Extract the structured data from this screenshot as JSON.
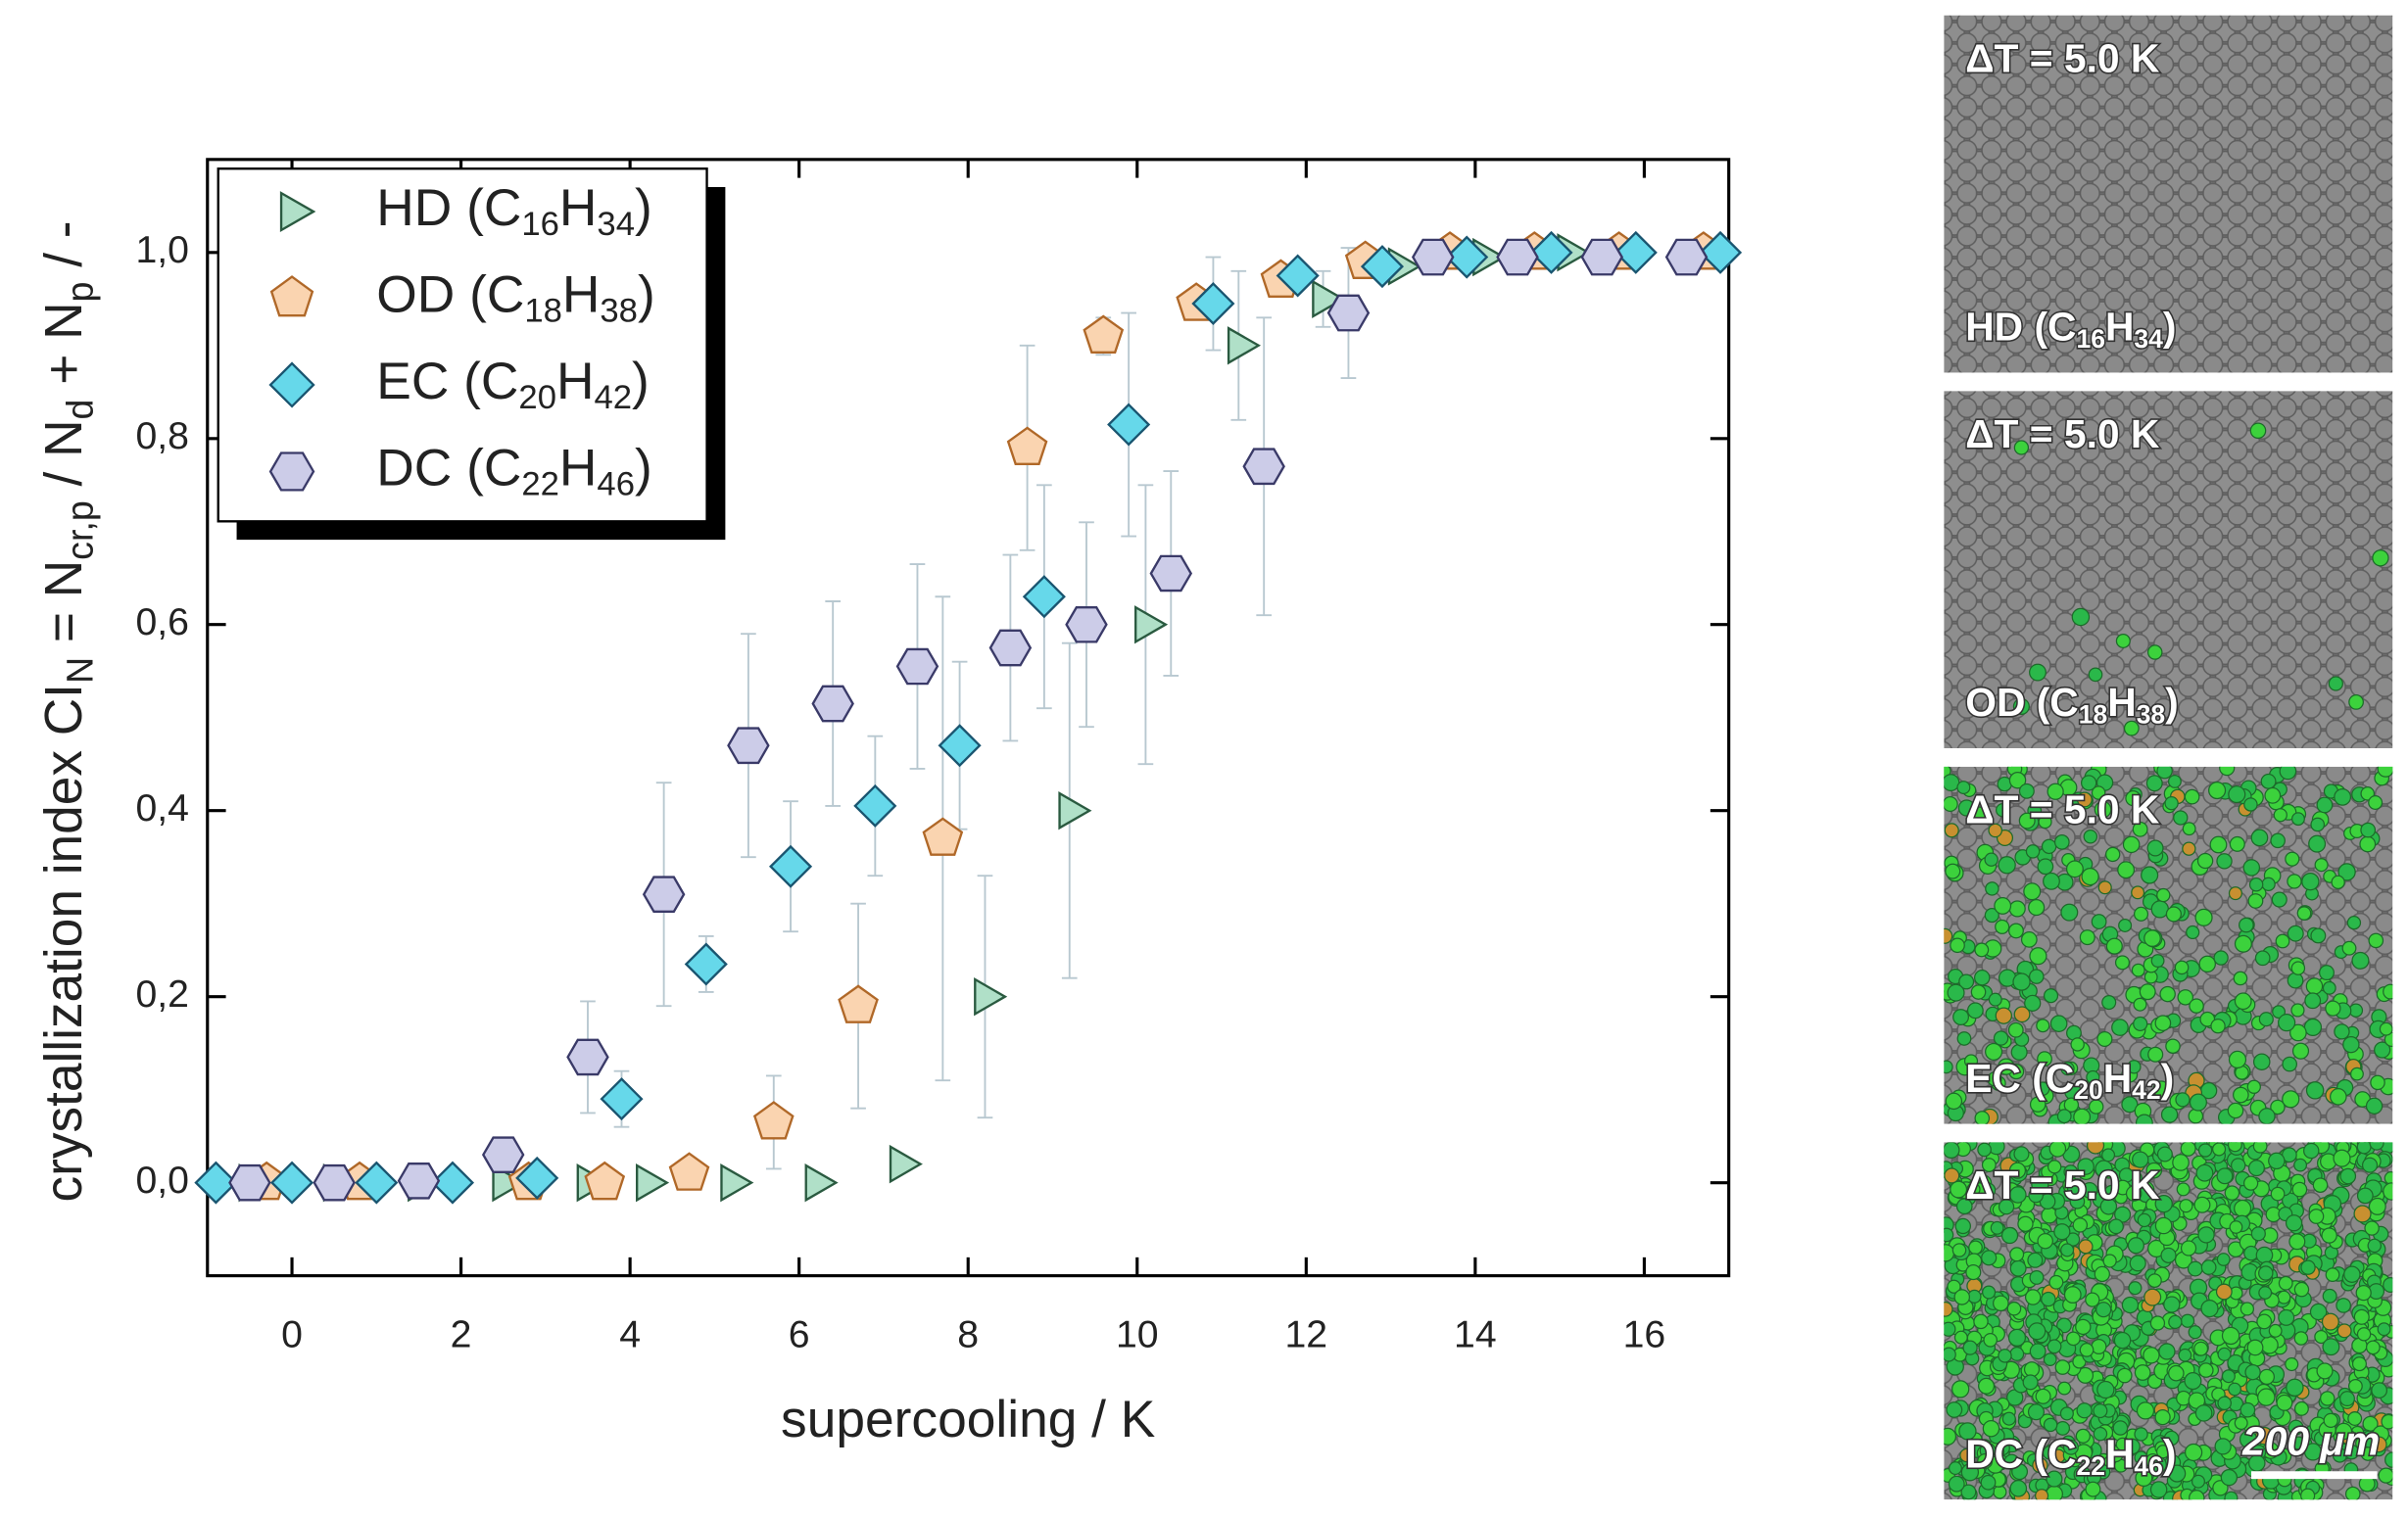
{
  "chart_data": {
    "type": "scatter",
    "xlabel": "supercooling / K",
    "ylabel": [
      "crystallization index CI",
      "N",
      " = N",
      "cr,p",
      " / N",
      "d",
      " + N",
      "p",
      " / -"
    ],
    "xlim": [
      -1,
      17
    ],
    "ylim": [
      -0.1,
      1.1
    ],
    "xticks": [
      0,
      2,
      4,
      6,
      8,
      10,
      12,
      14,
      16
    ],
    "yticks": [
      {
        "value": 0,
        "label": "0,0"
      },
      {
        "value": 0.2,
        "label": "0,2"
      },
      {
        "value": 0.4,
        "label": "0,4"
      },
      {
        "value": 0.6,
        "label": "0,6"
      },
      {
        "value": 0.8,
        "label": "0,8"
      },
      {
        "value": 1.0,
        "label": "1,0"
      }
    ],
    "legend": "upper left",
    "series": [
      {
        "name": "HD (C16H34)",
        "marker": "triangle",
        "color": "#b0e0c8",
        "edgecolor": "#2a5a40",
        "x": [
          -0.5,
          0.5,
          1.5,
          2.5,
          3.5,
          4.2,
          5.2,
          6.2,
          7.2,
          8.2,
          9.2,
          10.1,
          11.2,
          12.2,
          13.1,
          14.1,
          15.1
        ],
        "values": [
          0,
          0,
          0,
          0,
          0,
          0,
          0,
          0,
          0.02,
          0.2,
          0.4,
          0.6,
          0.9,
          0.95,
          0.985,
          0.995,
          1.0
        ],
        "errors": [
          null,
          null,
          null,
          null,
          null,
          null,
          null,
          null,
          null,
          0.13,
          0.18,
          0.15,
          0.08,
          0.03,
          null,
          null,
          null
        ]
      },
      {
        "name": "OD (C18H38)",
        "marker": "pentagon",
        "color": "#fad4b0",
        "edgecolor": "#b06828",
        "x": [
          -0.3,
          0.8,
          2.8,
          3.7,
          4.7,
          5.7,
          6.7,
          7.7,
          8.7,
          9.6,
          10.7,
          11.7,
          12.7,
          13.7,
          14.7,
          15.7,
          16.7
        ],
        "values": [
          0,
          0,
          0,
          0,
          0.01,
          0.065,
          0.19,
          0.37,
          0.79,
          0.91,
          0.945,
          0.97,
          0.99,
          1.0,
          1.0,
          1.0,
          1.0
        ],
        "errors": [
          null,
          null,
          null,
          null,
          null,
          0.05,
          0.11,
          0.26,
          0.11,
          0.02,
          null,
          null,
          null,
          null,
          null,
          null,
          null
        ]
      },
      {
        "name": "EC (C20H42)",
        "marker": "diamond",
        "color": "#66d8ea",
        "edgecolor": "#1a5570",
        "x": [
          -0.9,
          0,
          1,
          1.9,
          2.9,
          3.9,
          4.9,
          5.9,
          6.9,
          7.9,
          8.9,
          9.9,
          10.9,
          11.9,
          12.9,
          13.9,
          14.9,
          15.9,
          16.9
        ],
        "values": [
          0,
          0,
          0,
          0,
          0.005,
          0.09,
          0.235,
          0.34,
          0.405,
          0.47,
          0.63,
          0.815,
          0.945,
          0.975,
          0.985,
          0.995,
          1.0,
          1.0,
          1.0
        ],
        "errors": [
          null,
          null,
          null,
          null,
          null,
          0.03,
          0.03,
          0.07,
          0.075,
          0.09,
          0.12,
          0.12,
          0.05,
          null,
          null,
          null,
          null,
          null,
          null
        ]
      },
      {
        "name": "DC (C22H46)",
        "marker": "hexagon",
        "color": "#cccce8",
        "edgecolor": "#3a3a68",
        "x": [
          -0.5,
          0.5,
          1.5,
          2.5,
          3.5,
          4.4,
          5.4,
          6.4,
          7.4,
          8.5,
          9.4,
          10.4,
          11.5,
          12.5,
          13.5,
          14.5,
          15.5,
          16.5
        ],
        "values": [
          0,
          0,
          0.002,
          0.03,
          0.135,
          0.31,
          0.47,
          0.515,
          0.555,
          0.575,
          0.6,
          0.655,
          0.77,
          0.935,
          0.995,
          0.995,
          0.995,
          0.995
        ],
        "errors": [
          null,
          null,
          null,
          null,
          0.06,
          0.12,
          0.12,
          0.11,
          0.11,
          0.1,
          0.11,
          0.11,
          0.16,
          0.07,
          null,
          null,
          null,
          null
        ]
      }
    ]
  },
  "panels": [
    {
      "label": "ΔT = 5.0 K",
      "caption": "HD (C16H34)"
    },
    {
      "label": "ΔT = 5.0 K",
      "caption": "OD (C18H38)"
    },
    {
      "label": "ΔT = 5.0 K",
      "caption": "EC (C20H42)"
    },
    {
      "label": "ΔT = 5.0 K",
      "caption": "DC (C22H46)"
    }
  ],
  "scale_bar": "200 μm"
}
